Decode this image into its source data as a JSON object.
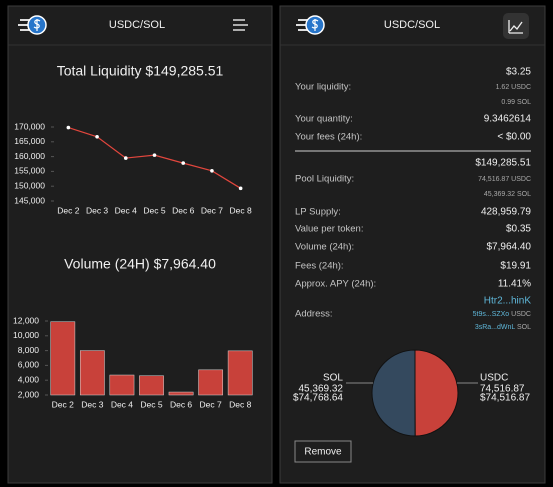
{
  "left_header": {
    "title": "USDC/SOL"
  },
  "right_header": {
    "title": "USDC/SOL"
  },
  "chart_data": [
    {
      "type": "line",
      "title": "Total Liquidity $149,285.51",
      "categories": [
        "Dec 2",
        "Dec 3",
        "Dec 4",
        "Dec 5",
        "Dec 6",
        "Dec 7",
        "Dec 8"
      ],
      "values": [
        169800,
        166700,
        159500,
        160500,
        157800,
        155200,
        149285.51
      ],
      "color": "#e2463d",
      "ylim": [
        145000,
        170000
      ],
      "yticks": [
        {
          "value": 145000,
          "label": "145,000"
        },
        {
          "value": 150000,
          "label": "150,000"
        },
        {
          "value": 155000,
          "label": "155,000"
        },
        {
          "value": 160000,
          "label": "160,000"
        },
        {
          "value": 165000,
          "label": "165,000"
        },
        {
          "value": 170000,
          "label": "170,000"
        }
      ]
    },
    {
      "type": "bar",
      "title": "Volume (24H) $7,964.40",
      "categories": [
        "Dec 2",
        "Dec 3",
        "Dec 4",
        "Dec 5",
        "Dec 6",
        "Dec 7",
        "Dec 8"
      ],
      "values": [
        11900,
        8000,
        4700,
        4600,
        2400,
        5400,
        7964.4
      ],
      "color": "#c8413a",
      "ylim": [
        2000,
        12000
      ],
      "yticks": [
        {
          "value": 2000,
          "label": "2,000"
        },
        {
          "value": 4000,
          "label": "4,000"
        },
        {
          "value": 6000,
          "label": "6,000"
        },
        {
          "value": 8000,
          "label": "8,000"
        },
        {
          "value": 10000,
          "label": "10,000"
        },
        {
          "value": 12000,
          "label": "12,000"
        }
      ]
    },
    {
      "type": "pie",
      "categories": [
        "SOL",
        "USDC"
      ],
      "values": [
        74768.64,
        74516.87
      ],
      "value_labels": [
        "$74,768.64",
        "$74,516.87"
      ],
      "amounts": [
        "45,369.32",
        "74,516.87"
      ],
      "colors": [
        "#34495e",
        "#c8413a"
      ]
    }
  ],
  "details": {
    "your_liquidity": {
      "label": "Your liquidity:",
      "value": "$3.25",
      "amounts": [
        "1.62 USDC",
        "0.99 SOL"
      ]
    },
    "your_quantity": {
      "label": "Your quantity:",
      "value": "9.3462614"
    },
    "your_fees": {
      "label": "Your fees (24h):",
      "value": "< $0.00"
    },
    "pool_liquidity": {
      "label": "Pool Liquidity:",
      "value": "$149,285.51",
      "amounts": [
        "74,516.87 USDC",
        "45,369.32 SOL"
      ]
    },
    "lp_supply": {
      "label": "LP Supply:",
      "value": "428,959.79"
    },
    "value_per_token": {
      "label": "Value per token:",
      "value": "$0.35"
    },
    "volume": {
      "label": "Volume (24h):",
      "value": "$7,964.40"
    },
    "fees": {
      "label": "Fees (24h):",
      "value": "$19.91"
    },
    "apy": {
      "label": "Approx. APY (24h):",
      "value": "11.41%"
    },
    "address": {
      "label": "Address:",
      "value": "Htr2...hinK",
      "tokens": [
        {
          "address": "5t9s...SZXo",
          "token": "USDC"
        },
        {
          "address": "3sRa...dWnL",
          "token": "SOL"
        }
      ]
    }
  },
  "remove_button": "Remove"
}
